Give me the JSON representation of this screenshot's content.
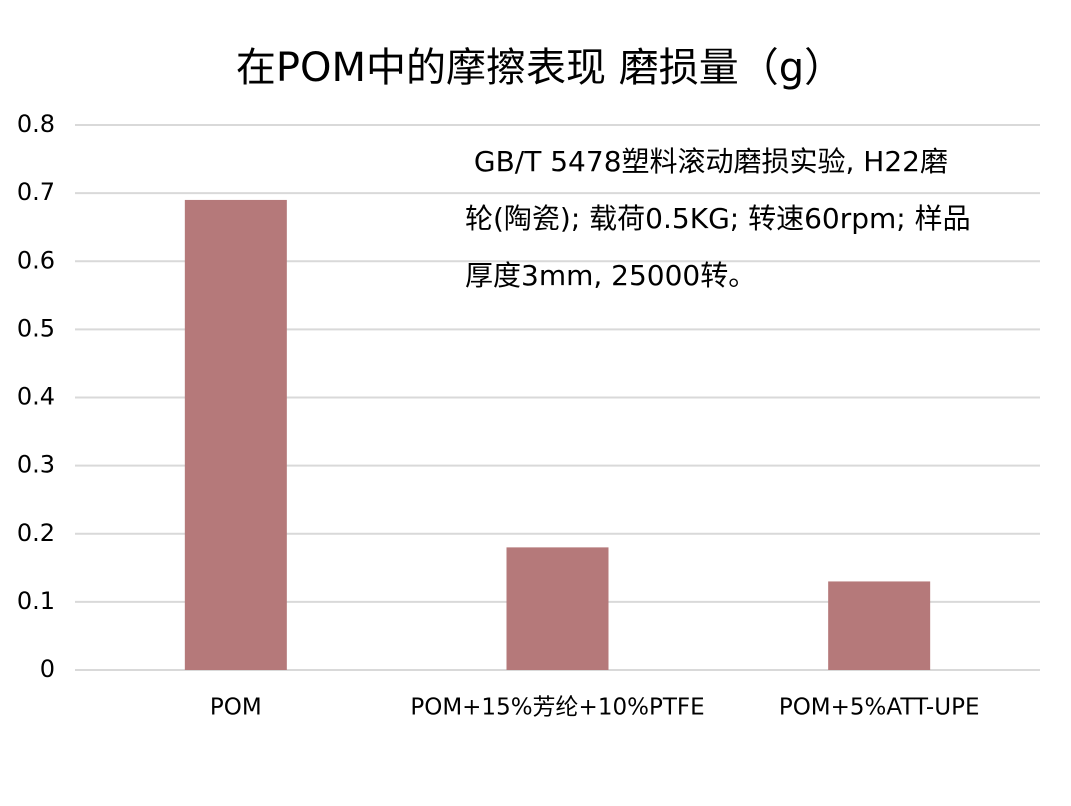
{
  "chart_data": {
    "type": "bar",
    "title": "在POM中的摩擦表现 磨损量（g）",
    "categories": [
      "POM",
      "POM+15%芳纶+10%PTFE",
      "POM+5%ATT-UPE"
    ],
    "values": [
      0.69,
      0.18,
      0.13
    ],
    "color": "#b5797a",
    "ylim": [
      0,
      0.8
    ],
    "yticks": [
      0,
      0.1,
      0.2,
      0.3,
      0.4,
      0.5,
      0.6,
      0.7,
      0.8
    ],
    "grid": true,
    "annotation": [
      " GB/T 5478塑料滚动磨损实验, H22磨",
      "轮(陶瓷); 载荷0.5KG; 转速60rpm; 样品",
      "厚度3mm, 25000转。"
    ]
  }
}
